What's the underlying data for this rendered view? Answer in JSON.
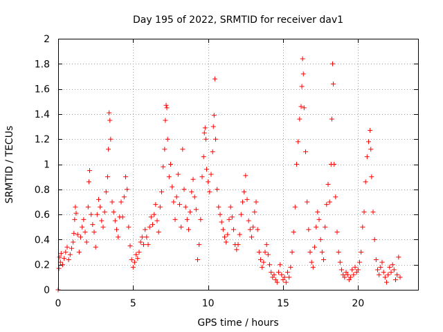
{
  "chart_data": {
    "type": "scatter",
    "title": "Day 195 of 2022, SRMTID for receiver dav1",
    "xlabel": "GPS time / hours",
    "ylabel": "SRMTID / TECUs",
    "xlim": [
      0,
      24
    ],
    "ylim": [
      0,
      2
    ],
    "x_ticks": [
      0,
      5,
      10,
      15,
      20
    ],
    "y_ticks": [
      0,
      0.2,
      0.4,
      0.6,
      0.8,
      1,
      1.2,
      1.4,
      1.6,
      1.8,
      2
    ],
    "x_tick_labels": [
      "0",
      "5",
      "10",
      "15",
      "20"
    ],
    "y_tick_labels": [
      "0",
      "0.2",
      "0.4",
      "0.6",
      "0.8",
      "1",
      "1.2",
      "1.4",
      "1.6",
      "1.8",
      "2"
    ],
    "grid": true,
    "marker": "+",
    "color": "#ff0000",
    "series": [
      {
        "name": "dav1",
        "points": [
          [
            0.0,
            0.0
          ],
          [
            0.05,
            0.17
          ],
          [
            0.1,
            0.26
          ],
          [
            0.15,
            0.22
          ],
          [
            0.2,
            0.29
          ],
          [
            0.3,
            0.2
          ],
          [
            0.4,
            0.25
          ],
          [
            0.5,
            0.3
          ],
          [
            0.6,
            0.34
          ],
          [
            0.7,
            0.24
          ],
          [
            0.8,
            0.28
          ],
          [
            0.9,
            0.33
          ],
          [
            1.0,
            0.38
          ],
          [
            1.05,
            0.45
          ],
          [
            1.1,
            0.56
          ],
          [
            1.15,
            0.66
          ],
          [
            1.2,
            0.61
          ],
          [
            1.3,
            0.44
          ],
          [
            1.4,
            0.3
          ],
          [
            1.5,
            0.42
          ],
          [
            1.6,
            0.5
          ],
          [
            1.7,
            0.56
          ],
          [
            1.8,
            0.46
          ],
          [
            1.9,
            0.38
          ],
          [
            2.0,
            0.66
          ],
          [
            2.05,
            0.86
          ],
          [
            2.1,
            0.95
          ],
          [
            2.2,
            0.6
          ],
          [
            2.3,
            0.52
          ],
          [
            2.4,
            0.46
          ],
          [
            2.5,
            0.34
          ],
          [
            2.6,
            0.6
          ],
          [
            2.7,
            0.72
          ],
          [
            2.8,
            0.66
          ],
          [
            2.9,
            0.55
          ],
          [
            3.0,
            0.5
          ],
          [
            3.1,
            0.62
          ],
          [
            3.2,
            0.78
          ],
          [
            3.3,
            0.9
          ],
          [
            3.35,
            1.12
          ],
          [
            3.4,
            1.41
          ],
          [
            3.45,
            1.35
          ],
          [
            3.5,
            1.2
          ],
          [
            3.6,
            0.7
          ],
          [
            3.7,
            0.62
          ],
          [
            3.8,
            0.55
          ],
          [
            3.9,
            0.48
          ],
          [
            4.0,
            0.42
          ],
          [
            4.1,
            0.58
          ],
          [
            4.2,
            0.7
          ],
          [
            4.3,
            0.58
          ],
          [
            4.4,
            0.74
          ],
          [
            4.5,
            0.9
          ],
          [
            4.6,
            0.8
          ],
          [
            4.7,
            0.5
          ],
          [
            4.8,
            0.35
          ],
          [
            4.9,
            0.24
          ],
          [
            5.0,
            0.18
          ],
          [
            5.1,
            0.22
          ],
          [
            5.2,
            0.28
          ],
          [
            5.3,
            0.25
          ],
          [
            5.4,
            0.3
          ],
          [
            5.5,
            0.38
          ],
          [
            5.6,
            0.42
          ],
          [
            5.7,
            0.36
          ],
          [
            5.8,
            0.48
          ],
          [
            5.9,
            0.42
          ],
          [
            6.0,
            0.36
          ],
          [
            6.1,
            0.5
          ],
          [
            6.2,
            0.58
          ],
          [
            6.3,
            0.52
          ],
          [
            6.4,
            0.6
          ],
          [
            6.5,
            0.68
          ],
          [
            6.6,
            0.55
          ],
          [
            6.7,
            0.46
          ],
          [
            6.8,
            0.66
          ],
          [
            6.9,
            0.78
          ],
          [
            7.0,
            0.98
          ],
          [
            7.1,
            1.12
          ],
          [
            7.15,
            1.35
          ],
          [
            7.2,
            1.47
          ],
          [
            7.25,
            1.45
          ],
          [
            7.3,
            1.2
          ],
          [
            7.4,
            0.9
          ],
          [
            7.5,
            1.0
          ],
          [
            7.6,
            0.82
          ],
          [
            7.7,
            0.7
          ],
          [
            7.8,
            0.56
          ],
          [
            7.9,
            0.74
          ],
          [
            8.0,
            0.92
          ],
          [
            8.1,
            0.68
          ],
          [
            8.2,
            0.5
          ],
          [
            8.3,
            1.12
          ],
          [
            8.4,
            0.8
          ],
          [
            8.5,
            0.66
          ],
          [
            8.6,
            0.56
          ],
          [
            8.7,
            0.48
          ],
          [
            8.8,
            0.62
          ],
          [
            8.9,
            0.78
          ],
          [
            9.0,
            0.88
          ],
          [
            9.1,
            0.74
          ],
          [
            9.2,
            0.64
          ],
          [
            9.3,
            0.24
          ],
          [
            9.4,
            0.36
          ],
          [
            9.5,
            0.56
          ],
          [
            9.6,
            0.9
          ],
          [
            9.7,
            1.06
          ],
          [
            9.75,
            1.25
          ],
          [
            9.8,
            1.29
          ],
          [
            9.85,
            1.2
          ],
          [
            9.9,
            0.96
          ],
          [
            10.0,
            0.86
          ],
          [
            10.1,
            0.78
          ],
          [
            10.2,
            0.92
          ],
          [
            10.3,
            1.1
          ],
          [
            10.35,
            1.3
          ],
          [
            10.4,
            1.39
          ],
          [
            10.45,
            1.68
          ],
          [
            10.5,
            1.2
          ],
          [
            10.6,
            0.8
          ],
          [
            10.7,
            0.66
          ],
          [
            10.8,
            0.6
          ],
          [
            10.9,
            0.54
          ],
          [
            11.0,
            0.48
          ],
          [
            11.1,
            0.42
          ],
          [
            11.2,
            0.38
          ],
          [
            11.3,
            0.44
          ],
          [
            11.4,
            0.56
          ],
          [
            11.5,
            0.66
          ],
          [
            11.6,
            0.58
          ],
          [
            11.7,
            0.48
          ],
          [
            11.8,
            0.36
          ],
          [
            11.9,
            0.32
          ],
          [
            12.0,
            0.36
          ],
          [
            12.1,
            0.44
          ],
          [
            12.2,
            0.6
          ],
          [
            12.3,
            0.7
          ],
          [
            12.4,
            0.78
          ],
          [
            12.5,
            0.91
          ],
          [
            12.6,
            0.72
          ],
          [
            12.7,
            0.55
          ],
          [
            12.8,
            0.48
          ],
          [
            12.9,
            0.42
          ],
          [
            13.0,
            0.5
          ],
          [
            13.1,
            0.62
          ],
          [
            13.2,
            0.7
          ],
          [
            13.3,
            0.48
          ],
          [
            13.4,
            0.3
          ],
          [
            13.5,
            0.24
          ],
          [
            13.6,
            0.18
          ],
          [
            13.7,
            0.22
          ],
          [
            13.8,
            0.3
          ],
          [
            13.9,
            0.36
          ],
          [
            14.0,
            0.28
          ],
          [
            14.1,
            0.2
          ],
          [
            14.2,
            0.14
          ],
          [
            14.3,
            0.1
          ],
          [
            14.4,
            0.12
          ],
          [
            14.5,
            0.08
          ],
          [
            14.6,
            0.06
          ],
          [
            14.7,
            0.14
          ],
          [
            14.8,
            0.2
          ],
          [
            14.9,
            0.12
          ],
          [
            15.0,
            0.08
          ],
          [
            15.1,
            0.1
          ],
          [
            15.2,
            0.06
          ],
          [
            15.3,
            0.14
          ],
          [
            15.4,
            0.1
          ],
          [
            15.5,
            0.18
          ],
          [
            15.6,
            0.3
          ],
          [
            15.7,
            0.46
          ],
          [
            15.8,
            0.66
          ],
          [
            15.9,
            1.0
          ],
          [
            16.0,
            1.18
          ],
          [
            16.1,
            1.36
          ],
          [
            16.2,
            1.46
          ],
          [
            16.25,
            1.62
          ],
          [
            16.3,
            1.84
          ],
          [
            16.35,
            1.72
          ],
          [
            16.4,
            1.45
          ],
          [
            16.5,
            1.1
          ],
          [
            16.6,
            0.7
          ],
          [
            16.7,
            0.48
          ],
          [
            16.8,
            0.3
          ],
          [
            16.9,
            0.22
          ],
          [
            17.0,
            0.18
          ],
          [
            17.1,
            0.34
          ],
          [
            17.2,
            0.5
          ],
          [
            17.3,
            0.62
          ],
          [
            17.4,
            0.56
          ],
          [
            17.5,
            0.4
          ],
          [
            17.6,
            0.3
          ],
          [
            17.7,
            0.24
          ],
          [
            17.8,
            0.5
          ],
          [
            17.9,
            0.68
          ],
          [
            18.0,
            0.84
          ],
          [
            18.1,
            0.7
          ],
          [
            18.2,
            1.0
          ],
          [
            18.25,
            1.36
          ],
          [
            18.3,
            1.8
          ],
          [
            18.35,
            1.64
          ],
          [
            18.4,
            1.0
          ],
          [
            18.5,
            0.74
          ],
          [
            18.6,
            0.46
          ],
          [
            18.7,
            0.3
          ],
          [
            18.8,
            0.22
          ],
          [
            18.9,
            0.16
          ],
          [
            19.0,
            0.12
          ],
          [
            19.1,
            0.1
          ],
          [
            19.2,
            0.14
          ],
          [
            19.3,
            0.12
          ],
          [
            19.4,
            0.08
          ],
          [
            19.5,
            0.1
          ],
          [
            19.6,
            0.16
          ],
          [
            19.7,
            0.12
          ],
          [
            19.8,
            0.18
          ],
          [
            19.9,
            0.14
          ],
          [
            20.0,
            0.16
          ],
          [
            20.1,
            0.22
          ],
          [
            20.2,
            0.3
          ],
          [
            20.3,
            0.5
          ],
          [
            20.4,
            0.62
          ],
          [
            20.5,
            0.86
          ],
          [
            20.6,
            1.06
          ],
          [
            20.7,
            1.18
          ],
          [
            20.8,
            1.27
          ],
          [
            20.85,
            1.12
          ],
          [
            20.9,
            0.9
          ],
          [
            21.0,
            0.62
          ],
          [
            21.1,
            0.4
          ],
          [
            21.2,
            0.24
          ],
          [
            21.3,
            0.16
          ],
          [
            21.4,
            0.12
          ],
          [
            21.5,
            0.18
          ],
          [
            21.6,
            0.22
          ],
          [
            21.7,
            0.14
          ],
          [
            21.8,
            0.1
          ],
          [
            21.9,
            0.06
          ],
          [
            22.0,
            0.12
          ],
          [
            22.1,
            0.18
          ],
          [
            22.2,
            0.14
          ],
          [
            22.3,
            0.2
          ],
          [
            22.4,
            0.16
          ],
          [
            22.5,
            0.08
          ],
          [
            22.6,
            0.12
          ],
          [
            22.7,
            0.26
          ],
          [
            22.8,
            0.1
          ]
        ]
      }
    ]
  }
}
